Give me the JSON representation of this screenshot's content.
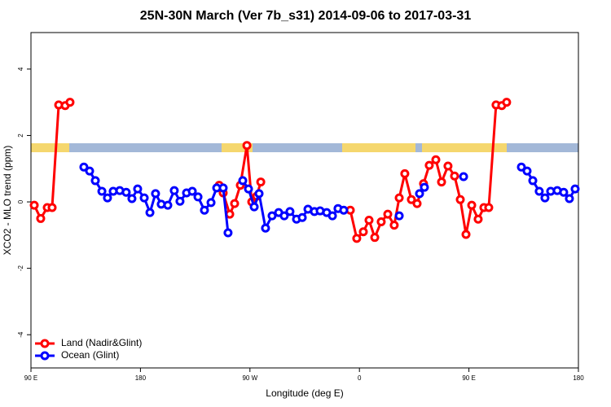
{
  "chart_data": {
    "type": "line",
    "title": "25N-30N March (Ver 7b_s31)   2014-09-06 to 2017-03-31",
    "x_label": "Longitude (deg E)",
    "y_label": "XCO2 - MLO trend (ppm)",
    "xlim": [
      90,
      540
    ],
    "xticks": [
      {
        "value": 90,
        "label": "90 E"
      },
      180,
      {
        "value": 270,
        "label": "90 W"
      },
      {
        "value": 360,
        "label": "0"
      },
      {
        "value": 450,
        "label": "90 E"
      },
      {
        "value": 540,
        "label": "180"
      }
    ],
    "ylim": [
      -5,
      5.1
    ],
    "yticks": [
      -4,
      -2,
      0,
      2,
      4
    ],
    "legend": "bottom-left",
    "series": [
      {
        "name": "Land (Nadir&Glint)",
        "color": "#ff0000",
        "x": [
          92.7,
          98.0,
          103.4,
          107.4,
          112.8,
          118.1,
          122.1,
          null,
          244.7,
          248.0,
          253.4,
          257.4,
          262.1,
          267.5,
          271.5,
          275.5,
          278.9,
          null,
          352.5,
          357.8,
          363.2,
          367.9,
          372.6,
          377.9,
          383.3,
          388.6,
          392.7,
          397.3,
          402.7,
          407.4,
          412.7,
          417.4,
          422.8,
          427.5,
          432.8,
          438.2,
          442.9,
          447.6,
          452.3,
          457.6,
          462.3,
          466.3,
          472.3,
          477.0,
          481.0
        ],
        "values": [
          -0.1,
          -0.5,
          -0.17,
          -0.17,
          2.92,
          2.9,
          3.0,
          null,
          0.5,
          0.27,
          -0.37,
          -0.05,
          0.5,
          1.7,
          0.0,
          0.17,
          0.6,
          null,
          -0.25,
          -1.1,
          -0.9,
          -0.55,
          -1.07,
          -0.6,
          -0.37,
          -0.7,
          0.12,
          0.85,
          0.07,
          -0.05,
          0.55,
          1.1,
          1.27,
          0.6,
          1.08,
          0.78,
          0.07,
          -0.98,
          -0.1,
          -0.52,
          -0.17,
          -0.17,
          2.92,
          2.9,
          3.0
        ]
      },
      {
        "name": "Ocean (Glint)",
        "color": "#0000ff",
        "x": [
          133.5,
          138.2,
          142.9,
          148.3,
          152.9,
          157.6,
          163.0,
          168.3,
          173.0,
          177.7,
          183.1,
          187.8,
          192.4,
          197.1,
          202.5,
          207.8,
          212.5,
          217.9,
          222.6,
          227.3,
          232.6,
          238.0,
          242.7,
          248.0,
          252.0,
          null,
          264.1,
          268.8,
          273.5,
          277.5,
          282.8,
          288.2,
          293.6,
          298.2,
          302.9,
          308.3,
          313.0,
          317.7,
          323.0,
          327.7,
          333.1,
          337.8,
          342.4,
          347.1,
          null,
          392.7,
          null,
          409.4,
          413.4,
          null,
          445.6,
          null,
          493.1,
          497.8,
          502.5,
          507.8,
          512.5,
          517.2,
          522.6,
          527.9,
          532.6,
          537.3
        ],
        "values": [
          1.05,
          0.93,
          0.64,
          0.32,
          0.12,
          0.32,
          0.34,
          0.29,
          0.1,
          0.39,
          0.12,
          -0.32,
          0.25,
          -0.07,
          -0.1,
          0.34,
          0.02,
          0.27,
          0.32,
          0.15,
          -0.25,
          -0.02,
          0.42,
          0.42,
          -0.93,
          null,
          0.64,
          0.39,
          -0.15,
          0.25,
          -0.79,
          -0.42,
          -0.32,
          -0.42,
          -0.29,
          -0.52,
          -0.47,
          -0.22,
          -0.29,
          -0.27,
          -0.32,
          -0.42,
          -0.2,
          -0.25,
          null,
          -0.42,
          null,
          0.25,
          0.44,
          null,
          0.76,
          null,
          1.05,
          0.93,
          0.64,
          0.32,
          0.12,
          0.32,
          0.34,
          0.29,
          0.1,
          0.39
        ]
      }
    ]
  }
}
